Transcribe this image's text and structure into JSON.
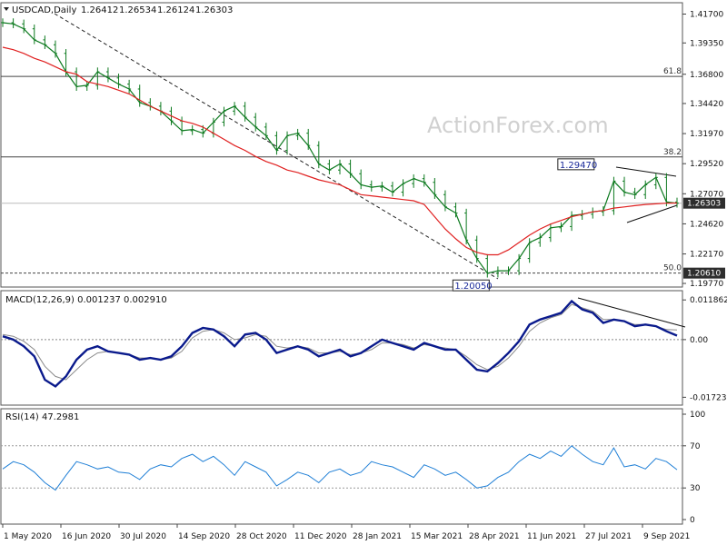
{
  "chart_data": {
    "type": "line",
    "symbol_title": "USDCAD,Daily",
    "ohlc": [
      "1.26412",
      "1.26534",
      "1.26124",
      "1.26303"
    ],
    "watermark": "ActionForex.com",
    "x_ticks": [
      "1 May 2020",
      "16 Jun 2020",
      "30 Jul 2020",
      "14 Sep 2020",
      "28 Oct 2020",
      "11 Dec 2020",
      "28 Jan 2021",
      "15 Mar 2021",
      "28 Apr 2021",
      "11 Jun 2021",
      "27 Jul 2021",
      "9 Sep 2021"
    ],
    "price": {
      "y_ticks": [
        "1.41700",
        "1.39350",
        "1.36800",
        "1.34420",
        "1.31970",
        "1.29520",
        "1.27070",
        "1.24620",
        "1.22170",
        "1.19770"
      ],
      "ylim": [
        1.1955,
        1.4255
      ],
      "fib_levels": [
        {
          "label": "61.8",
          "value": 1.3662
        },
        {
          "label": "38.2",
          "value": 1.3007
        },
        {
          "label": "50.0",
          "value": 1.2061
        }
      ],
      "current_label": "1.26303",
      "current_value": 1.26303,
      "support_label": "1.20610",
      "support_value": 1.2061,
      "annotations": [
        {
          "text": "1.29470",
          "x_index": 57,
          "value": 1.2947
        },
        {
          "text": "1.20050",
          "x_index": 46,
          "value": 1.2005
        }
      ],
      "close_series": [
        1.41,
        1.409,
        1.405,
        1.396,
        1.392,
        1.385,
        1.37,
        1.358,
        1.359,
        1.37,
        1.365,
        1.36,
        1.356,
        1.345,
        1.342,
        1.338,
        1.33,
        1.322,
        1.323,
        1.32,
        1.329,
        1.338,
        1.342,
        1.333,
        1.325,
        1.318,
        1.306,
        1.318,
        1.32,
        1.31,
        1.295,
        1.29,
        1.295,
        1.287,
        1.278,
        1.276,
        1.277,
        1.272,
        1.279,
        1.283,
        1.28,
        1.27,
        1.26,
        1.255,
        1.233,
        1.218,
        1.206,
        1.208,
        1.208,
        1.218,
        1.231,
        1.235,
        1.243,
        1.244,
        1.253,
        1.254,
        1.256,
        1.257,
        1.281,
        1.272,
        1.27,
        1.278,
        1.284,
        1.264,
        1.263
      ],
      "ma_series": [
        1.39,
        1.388,
        1.385,
        1.381,
        1.378,
        1.374,
        1.37,
        1.368,
        1.362,
        1.36,
        1.358,
        1.355,
        1.352,
        1.347,
        1.342,
        1.338,
        1.334,
        1.33,
        1.328,
        1.325,
        1.32,
        1.315,
        1.31,
        1.306,
        1.301,
        1.297,
        1.294,
        1.29,
        1.288,
        1.285,
        1.282,
        1.28,
        1.278,
        1.274,
        1.27,
        1.269,
        1.268,
        1.267,
        1.266,
        1.265,
        1.262,
        1.252,
        1.242,
        1.234,
        1.227,
        1.223,
        1.221,
        1.221,
        1.225,
        1.231,
        1.237,
        1.242,
        1.246,
        1.249,
        1.252,
        1.254,
        1.256,
        1.257,
        1.259,
        1.26,
        1.261,
        1.262,
        1.2625,
        1.263,
        1.2632
      ],
      "ma_color": "#e02020",
      "price_color": "#0d7a1f"
    },
    "macd": {
      "title": "MACD(12,26,9) 0.001237 0.002910",
      "y_ticks": [
        "0.011862",
        "0.00",
        "-0.017238"
      ],
      "ylim": [
        -0.0185,
        0.013
      ],
      "main_color": "#0a1a8c",
      "signal_color": "#8a8a8a",
      "main": [
        0.001,
        0.0,
        -0.002,
        -0.005,
        -0.012,
        -0.014,
        -0.011,
        -0.006,
        -0.003,
        -0.002,
        -0.0035,
        -0.004,
        -0.0045,
        -0.006,
        -0.0055,
        -0.006,
        -0.005,
        -0.002,
        0.002,
        0.0035,
        0.003,
        0.001,
        -0.002,
        0.0015,
        0.002,
        0.0,
        -0.004,
        -0.003,
        -0.002,
        -0.003,
        -0.005,
        -0.004,
        -0.003,
        -0.005,
        -0.004,
        -0.002,
        0.0,
        -0.001,
        -0.002,
        -0.003,
        -0.001,
        -0.002,
        -0.003,
        -0.003,
        -0.006,
        -0.009,
        -0.0095,
        -0.007,
        -0.004,
        -0.0005,
        0.0045,
        0.006,
        0.007,
        0.008,
        0.0115,
        0.009,
        0.008,
        0.005,
        0.006,
        0.0055,
        0.004,
        0.0045,
        0.004,
        0.0025,
        0.0012
      ],
      "signal": [
        0.0015,
        0.001,
        -0.0005,
        -0.003,
        -0.008,
        -0.011,
        -0.012,
        -0.009,
        -0.006,
        -0.004,
        -0.0035,
        -0.004,
        -0.0045,
        -0.0055,
        -0.0055,
        -0.006,
        -0.0055,
        -0.0035,
        0.0005,
        0.0025,
        0.003,
        0.002,
        0.0,
        0.0005,
        0.0015,
        0.001,
        -0.002,
        -0.0025,
        -0.002,
        -0.0025,
        -0.004,
        -0.004,
        -0.0035,
        -0.0045,
        -0.004,
        -0.003,
        -0.001,
        -0.001,
        -0.0015,
        -0.0025,
        -0.0015,
        -0.002,
        -0.0025,
        -0.003,
        -0.005,
        -0.0075,
        -0.009,
        -0.008,
        -0.0055,
        -0.002,
        0.0025,
        0.005,
        0.0065,
        0.0075,
        0.0105,
        0.0095,
        0.0085,
        0.006,
        0.006,
        0.0055,
        0.0045,
        0.0045,
        0.004,
        0.003,
        0.0029
      ]
    },
    "rsi": {
      "title": "RSI(14) 47.2981",
      "y_ticks": [
        "100",
        "70",
        "30",
        "0"
      ],
      "levels": [
        70,
        30
      ],
      "ylim": [
        0,
        100
      ],
      "color": "#1f7fd6",
      "values": [
        48,
        55,
        52,
        45,
        35,
        28,
        42,
        55,
        52,
        48,
        50,
        45,
        44,
        38,
        48,
        52,
        50,
        58,
        62,
        55,
        60,
        52,
        42,
        55,
        50,
        45,
        32,
        38,
        45,
        42,
        35,
        45,
        48,
        42,
        45,
        55,
        52,
        50,
        45,
        40,
        52,
        48,
        42,
        45,
        38,
        30,
        32,
        40,
        45,
        55,
        62,
        58,
        65,
        60,
        70,
        62,
        55,
        52,
        68,
        50,
        52,
        48,
        58,
        55,
        47.3
      ]
    }
  }
}
